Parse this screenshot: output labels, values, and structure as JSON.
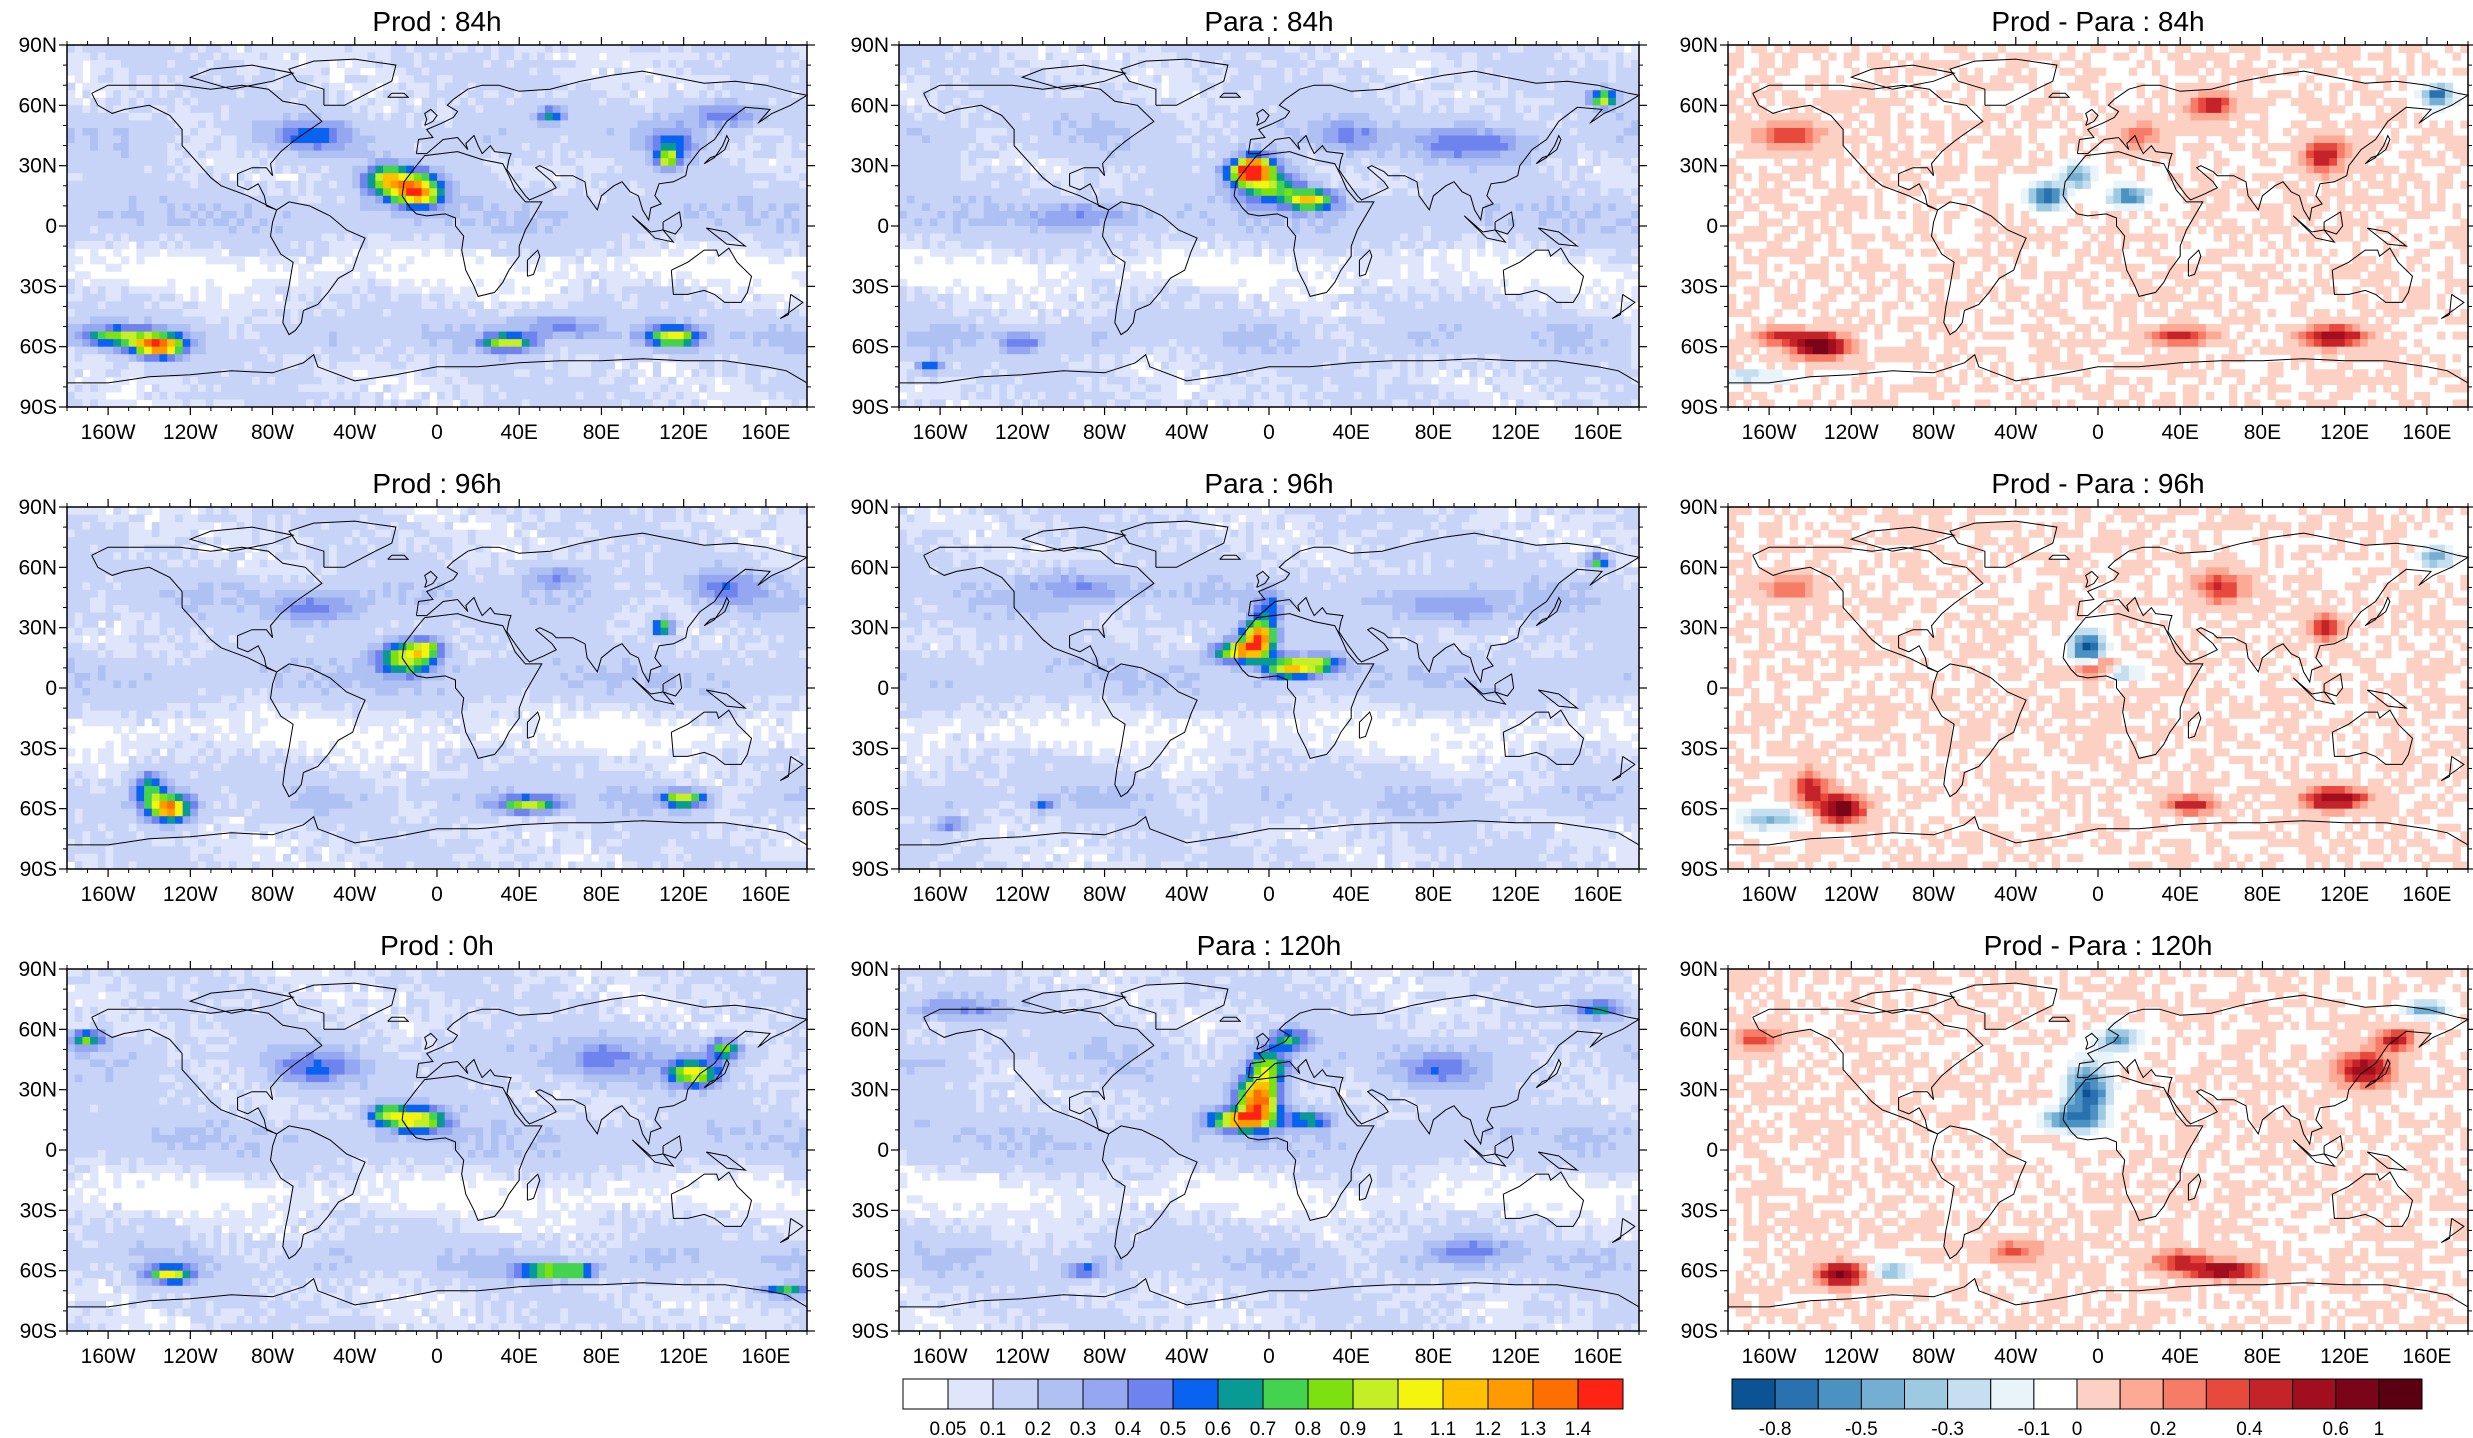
{
  "chart_data": {
    "type": "heatmap",
    "projection": "cylindrical-equidistant",
    "lon_range": [
      -180,
      180
    ],
    "lat_range": [
      -90,
      90
    ],
    "lat_ticks": [
      "90N",
      "60N",
      "30N",
      "0",
      "30S",
      "60S",
      "90S"
    ],
    "lon_ticks": [
      "160W",
      "120W",
      "80W",
      "40W",
      "0",
      "40E",
      "80E",
      "120E",
      "160E"
    ],
    "panels": [
      {
        "id": "prod-84h",
        "title": "Prod : 84h",
        "field": "field",
        "blobs": [
          [
            -15,
            20,
            16,
            8,
            0.95
          ],
          [
            -8,
            15,
            10,
            6,
            0.6
          ],
          [
            -25,
            25,
            10,
            6,
            0.5
          ],
          [
            55,
            55,
            6,
            4,
            0.55
          ],
          [
            112,
            33,
            5,
            4,
            0.8
          ],
          [
            115,
            40,
            10,
            8,
            0.4
          ],
          [
            -135,
            -60,
            12,
            5,
            1.25
          ],
          [
            -155,
            -55,
            20,
            5,
            0.65
          ],
          [
            35,
            -58,
            12,
            4,
            0.8
          ],
          [
            115,
            -55,
            12,
            5,
            0.9
          ],
          [
            60,
            -50,
            20,
            6,
            0.35
          ],
          [
            -60,
            45,
            18,
            7,
            0.35
          ],
          [
            140,
            55,
            20,
            6,
            0.35
          ]
        ]
      },
      {
        "id": "para-84h",
        "title": "Para : 84h",
        "field": "field",
        "blobs": [
          [
            -10,
            27,
            10,
            6,
            1.25
          ],
          [
            0,
            20,
            15,
            8,
            0.7
          ],
          [
            20,
            13,
            12,
            5,
            0.95
          ],
          [
            -5,
            32,
            8,
            5,
            0.55
          ],
          [
            163,
            63,
            6,
            4,
            0.95
          ],
          [
            -90,
            5,
            25,
            6,
            0.25
          ],
          [
            -120,
            -58,
            10,
            5,
            0.4
          ],
          [
            -165,
            -70,
            6,
            3,
            0.5
          ],
          [
            40,
            45,
            15,
            8,
            0.3
          ],
          [
            100,
            40,
            30,
            8,
            0.3
          ]
        ]
      },
      {
        "id": "diff-84h",
        "title": "Prod - Para : 84h",
        "field": "diff",
        "blobs": [
          [
            -135,
            -60,
            12,
            5,
            1.0
          ],
          [
            -150,
            -55,
            15,
            4,
            0.5
          ],
          [
            115,
            -55,
            14,
            5,
            0.7
          ],
          [
            40,
            -55,
            14,
            4,
            0.5
          ],
          [
            -25,
            15,
            8,
            6,
            -0.8
          ],
          [
            -10,
            25,
            8,
            6,
            -0.5
          ],
          [
            15,
            15,
            10,
            5,
            -0.6
          ],
          [
            165,
            65,
            8,
            5,
            -0.7
          ],
          [
            -150,
            45,
            15,
            6,
            0.4
          ],
          [
            55,
            60,
            10,
            6,
            0.5
          ],
          [
            110,
            35,
            10,
            8,
            0.5
          ],
          [
            -170,
            -75,
            20,
            3,
            -0.3
          ],
          [
            20,
            45,
            10,
            6,
            0.3
          ]
        ]
      },
      {
        "id": "prod-96h",
        "title": "Prod : 96h",
        "field": "field",
        "blobs": [
          [
            -15,
            15,
            14,
            8,
            0.85
          ],
          [
            -5,
            20,
            8,
            5,
            0.6
          ],
          [
            110,
            30,
            5,
            4,
            0.8
          ],
          [
            -130,
            -60,
            10,
            6,
            1.2
          ],
          [
            -140,
            -50,
            8,
            8,
            0.6
          ],
          [
            45,
            -58,
            14,
            4,
            0.8
          ],
          [
            120,
            -55,
            10,
            4,
            0.85
          ],
          [
            -60,
            40,
            20,
            8,
            0.35
          ],
          [
            60,
            55,
            15,
            6,
            0.3
          ],
          [
            140,
            50,
            15,
            8,
            0.3
          ]
        ]
      },
      {
        "id": "para-96h",
        "title": "Para : 96h",
        "field": "field",
        "blobs": [
          [
            -5,
            25,
            8,
            8,
            1.3
          ],
          [
            -15,
            18,
            12,
            5,
            1.0
          ],
          [
            10,
            10,
            12,
            5,
            0.95
          ],
          [
            0,
            40,
            6,
            8,
            0.45
          ],
          [
            25,
            12,
            10,
            4,
            0.7
          ],
          [
            160,
            63,
            5,
            3,
            0.8
          ],
          [
            -110,
            -58,
            6,
            3,
            0.4
          ],
          [
            -155,
            -68,
            6,
            3,
            0.5
          ],
          [
            -90,
            50,
            25,
            8,
            0.3
          ],
          [
            90,
            40,
            25,
            8,
            0.3
          ]
        ]
      },
      {
        "id": "diff-96h",
        "title": "Prod - Para : 96h",
        "field": "diff",
        "blobs": [
          [
            -125,
            -60,
            10,
            6,
            1.0
          ],
          [
            -140,
            -50,
            8,
            8,
            0.5
          ],
          [
            115,
            -55,
            14,
            5,
            0.8
          ],
          [
            45,
            -58,
            10,
            4,
            0.6
          ],
          [
            -5,
            20,
            8,
            8,
            -0.8
          ],
          [
            10,
            8,
            10,
            4,
            -0.4
          ],
          [
            0,
            10,
            10,
            5,
            0.5
          ],
          [
            165,
            65,
            8,
            5,
            -0.5
          ],
          [
            -160,
            -65,
            15,
            5,
            -0.4
          ],
          [
            110,
            30,
            8,
            6,
            0.5
          ],
          [
            60,
            50,
            12,
            8,
            0.4
          ],
          [
            -150,
            50,
            12,
            6,
            0.3
          ]
        ]
      },
      {
        "id": "prod-0h",
        "title": "Prod : 0h",
        "field": "field",
        "blobs": [
          [
            -10,
            15,
            14,
            6,
            0.95
          ],
          [
            -25,
            18,
            8,
            5,
            0.6
          ],
          [
            125,
            38,
            12,
            6,
            0.9
          ],
          [
            140,
            50,
            8,
            5,
            0.7
          ],
          [
            -130,
            -62,
            10,
            4,
            0.9
          ],
          [
            55,
            -60,
            15,
            4,
            0.8
          ],
          [
            70,
            -60,
            8,
            3,
            0.5
          ],
          [
            170,
            -70,
            10,
            3,
            0.6
          ],
          [
            -170,
            55,
            8,
            4,
            0.7
          ],
          [
            -60,
            40,
            20,
            8,
            0.35
          ],
          [
            80,
            45,
            20,
            10,
            0.3
          ]
        ]
      },
      {
        "id": "para-120h",
        "title": "Para : 120h",
        "field": "field",
        "blobs": [
          [
            -5,
            25,
            10,
            12,
            1.3
          ],
          [
            -15,
            15,
            14,
            5,
            0.95
          ],
          [
            0,
            42,
            8,
            8,
            0.7
          ],
          [
            10,
            55,
            10,
            5,
            0.55
          ],
          [
            20,
            15,
            10,
            4,
            0.6
          ],
          [
            160,
            70,
            12,
            4,
            0.5
          ],
          [
            -90,
            -60,
            8,
            3,
            0.5
          ],
          [
            -150,
            70,
            25,
            6,
            0.3
          ],
          [
            80,
            40,
            20,
            8,
            0.3
          ],
          [
            100,
            -50,
            20,
            6,
            0.3
          ]
        ]
      },
      {
        "id": "diff-120h",
        "title": "Prod - Para : 120h",
        "field": "diff",
        "blobs": [
          [
            -125,
            -62,
            10,
            5,
            0.9
          ],
          [
            60,
            -60,
            16,
            4,
            0.8
          ],
          [
            130,
            40,
            12,
            8,
            0.7
          ],
          [
            145,
            55,
            8,
            5,
            0.6
          ],
          [
            -5,
            28,
            10,
            14,
            -0.8
          ],
          [
            -15,
            15,
            12,
            5,
            -0.6
          ],
          [
            10,
            55,
            10,
            6,
            -0.5
          ],
          [
            160,
            70,
            10,
            4,
            -0.5
          ],
          [
            -165,
            55,
            10,
            5,
            0.4
          ],
          [
            -100,
            -60,
            10,
            4,
            -0.4
          ],
          [
            40,
            -55,
            14,
            5,
            0.4
          ],
          [
            -40,
            -50,
            15,
            5,
            0.3
          ]
        ]
      }
    ],
    "colorbars": [
      {
        "id": "field-colorbar",
        "labels": [
          "0.05",
          "0.1",
          "0.2",
          "0.3",
          "0.4",
          "0.5",
          "0.6",
          "0.7",
          "0.8",
          "0.9",
          "1",
          "1.1",
          "1.2",
          "1.3",
          "1.4"
        ],
        "colors": [
          "#ffffff",
          "#dfe6fb",
          "#c8d4f7",
          "#afc0f3",
          "#94a7f0",
          "#6f83ee",
          "#0a62f0",
          "#0a9a96",
          "#44d34e",
          "#7ce011",
          "#c4ee26",
          "#f4f40f",
          "#ffc000",
          "#ff9a00",
          "#ff6e00",
          "#ff2313"
        ]
      },
      {
        "id": "diff-colorbar",
        "labels": [
          "-0.8",
          "-0.5",
          "-0.3",
          "-0.1",
          "0",
          "0.2",
          "0.4",
          "0.6",
          "1"
        ],
        "colors": [
          "#0b5394",
          "#2a71b0",
          "#4b91c2",
          "#74aed3",
          "#9dc9e1",
          "#c6dff0",
          "#e8f3fa",
          "#ffffff",
          "#fdd0c4",
          "#fcaa95",
          "#f67c67",
          "#e8493d",
          "#c5232a",
          "#a10f1f",
          "#7a0418",
          "#5a0012"
        ]
      }
    ]
  }
}
